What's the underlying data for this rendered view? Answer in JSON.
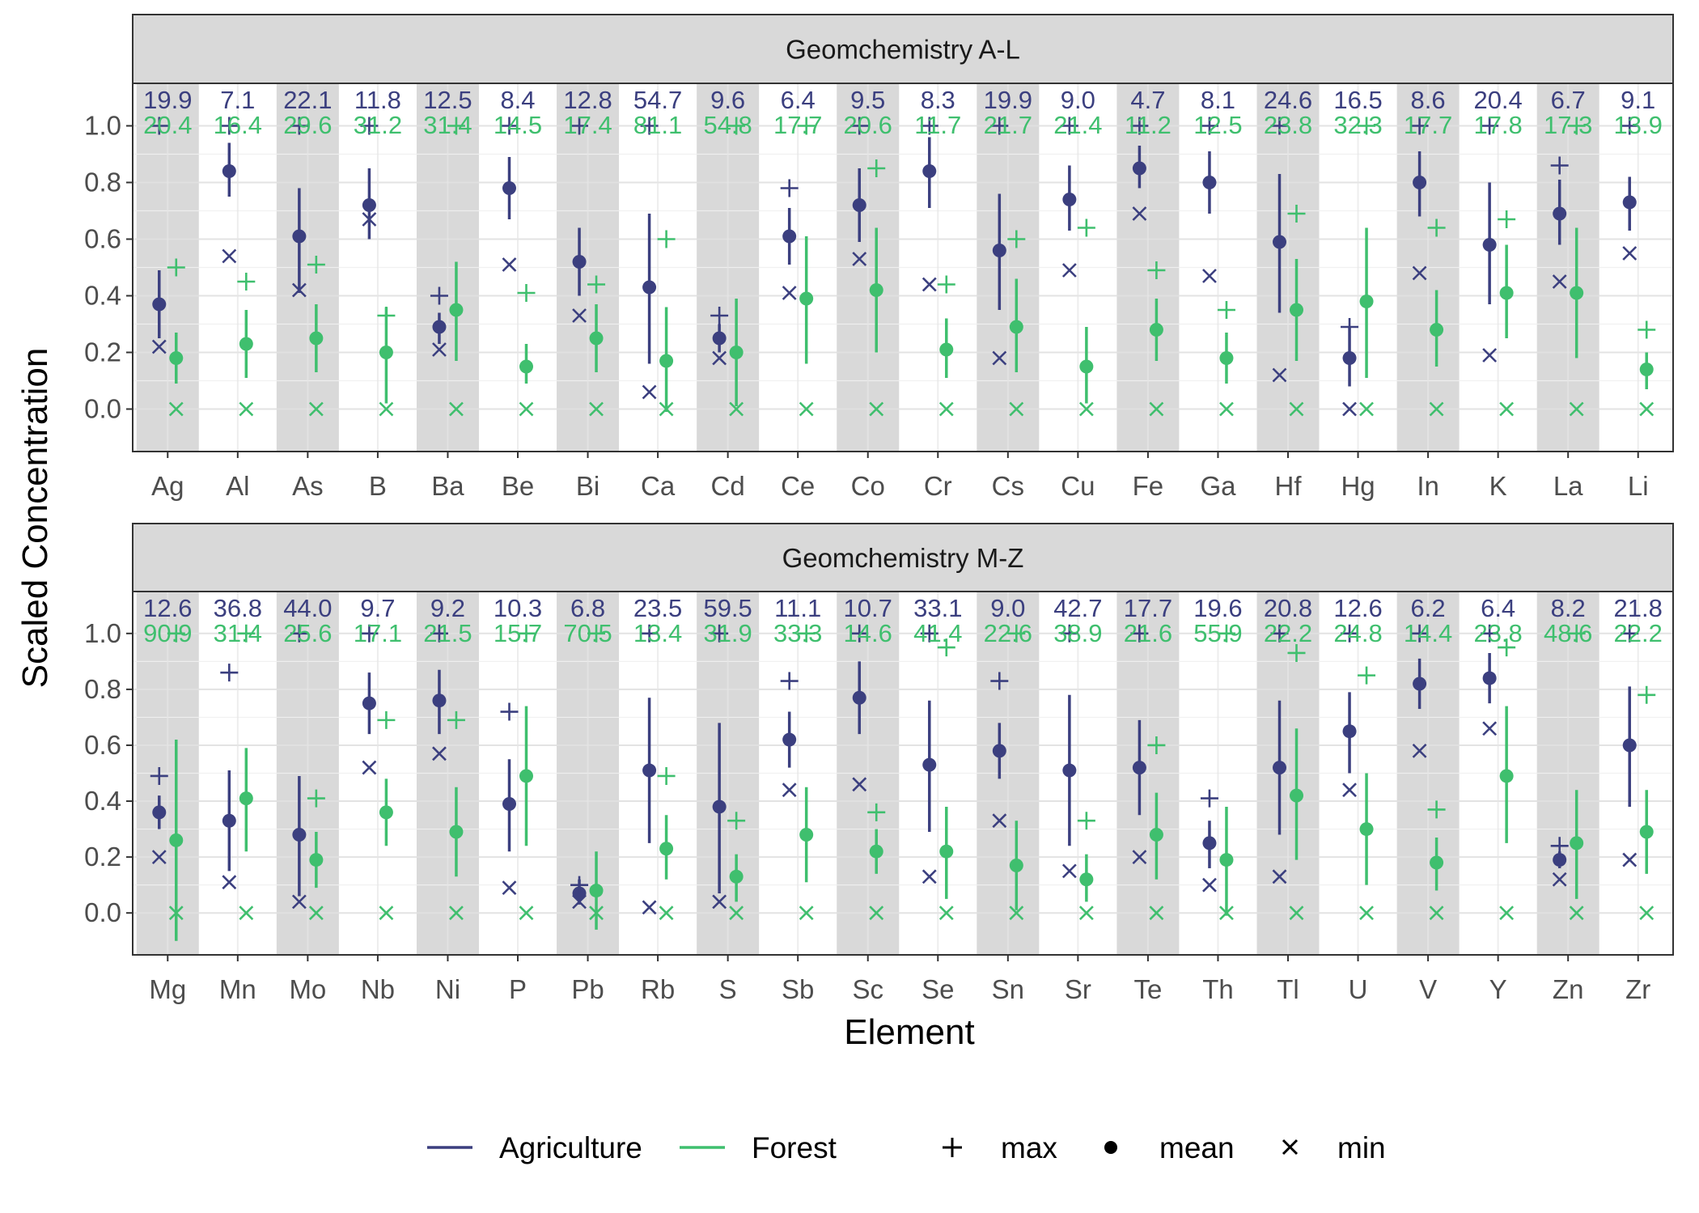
{
  "colors": {
    "agriculture": "#3b3f7f",
    "forest": "#3fbf6e",
    "band": "#d9d9d9",
    "strip": "#d9d9d9",
    "panel_border": "#333333",
    "grid": "#ebebeb"
  },
  "labels": {
    "xlabel": "Element",
    "ylabel": "Scaled Concentration",
    "legend_agriculture": "Agriculture",
    "legend_forest": "Forest",
    "legend_max": "max",
    "legend_mean": "mean",
    "legend_min": "min"
  },
  "chart_data": [
    {
      "type": "errorbar",
      "title": "Geomchemistry A-L",
      "ylim": [
        -0.15,
        1.15
      ],
      "yticks": [
        "0.0",
        "0.2",
        "0.4",
        "0.6",
        "0.8",
        "1.0"
      ],
      "categories": [
        "Ag",
        "Al",
        "As",
        "B",
        "Ba",
        "Be",
        "Bi",
        "Ca",
        "Cd",
        "Ce",
        "Co",
        "Cr",
        "Cs",
        "Cu",
        "Fe",
        "Ga",
        "Hf",
        "Hg",
        "In",
        "K",
        "La",
        "Li"
      ],
      "series": [
        {
          "name": "Agriculture",
          "mean": [
            0.37,
            0.84,
            0.61,
            0.72,
            0.29,
            0.78,
            0.52,
            0.43,
            0.25,
            0.61,
            0.72,
            0.84,
            0.56,
            0.74,
            0.85,
            0.8,
            0.59,
            0.18,
            0.8,
            0.58,
            0.69,
            0.73
          ],
          "lower": [
            0.25,
            0.75,
            0.41,
            0.6,
            0.23,
            0.67,
            0.4,
            0.16,
            0.2,
            0.51,
            0.59,
            0.71,
            0.35,
            0.63,
            0.78,
            0.69,
            0.34,
            0.08,
            0.68,
            0.37,
            0.58,
            0.63
          ],
          "upper": [
            0.49,
            0.94,
            0.78,
            0.85,
            0.34,
            0.89,
            0.64,
            0.69,
            0.3,
            0.71,
            0.85,
            0.96,
            0.76,
            0.86,
            0.93,
            0.91,
            0.83,
            0.29,
            0.91,
            0.8,
            0.81,
            0.82
          ],
          "max": [
            1.0,
            1.0,
            1.0,
            1.0,
            0.4,
            1.0,
            1.0,
            1.0,
            0.33,
            0.78,
            1.0,
            1.0,
            1.0,
            1.0,
            1.0,
            1.0,
            1.0,
            0.29,
            1.0,
            1.0,
            0.86,
            1.0
          ],
          "min": [
            0.22,
            0.54,
            0.42,
            0.67,
            0.21,
            0.51,
            0.33,
            0.06,
            0.18,
            0.41,
            0.53,
            0.44,
            0.18,
            0.49,
            0.69,
            0.47,
            0.12,
            0.0,
            0.48,
            0.19,
            0.45,
            0.55
          ],
          "cv": [
            "19.9",
            "7.1",
            "22.1",
            "11.8",
            "12.5",
            "8.4",
            "12.8",
            "54.7",
            "9.6",
            "6.4",
            "9.5",
            "8.3",
            "19.9",
            "9.0",
            "4.7",
            "8.1",
            "24.6",
            "16.5",
            "8.6",
            "20.4",
            "6.7",
            "9.1"
          ]
        },
        {
          "name": "Forest",
          "mean": [
            0.18,
            0.23,
            0.25,
            0.2,
            0.35,
            0.15,
            0.25,
            0.17,
            0.2,
            0.39,
            0.42,
            0.21,
            0.29,
            0.15,
            0.28,
            0.18,
            0.35,
            0.38,
            0.28,
            0.41,
            0.41,
            0.14
          ],
          "lower": [
            0.09,
            0.11,
            0.13,
            0.02,
            0.17,
            0.09,
            0.13,
            -0.01,
            0.01,
            0.16,
            0.2,
            0.11,
            0.13,
            0.02,
            0.17,
            0.09,
            0.17,
            0.11,
            0.15,
            0.25,
            0.18,
            0.07
          ],
          "upper": [
            0.27,
            0.35,
            0.37,
            0.36,
            0.52,
            0.23,
            0.37,
            0.36,
            0.39,
            0.61,
            0.64,
            0.32,
            0.46,
            0.29,
            0.39,
            0.27,
            0.53,
            0.64,
            0.42,
            0.58,
            0.64,
            0.2
          ],
          "max": [
            0.5,
            0.45,
            0.51,
            0.33,
            1.0,
            0.41,
            0.44,
            0.6,
            1.0,
            1.0,
            0.85,
            0.44,
            0.6,
            0.64,
            0.49,
            0.35,
            0.69,
            1.0,
            0.64,
            0.67,
            1.0,
            0.28
          ],
          "min": [
            0,
            0,
            0,
            0,
            0,
            0,
            0,
            0,
            0,
            0,
            0,
            0,
            0,
            0,
            0,
            0,
            0,
            0,
            0,
            0,
            0,
            0
          ],
          "cv": [
            "20.4",
            "16.4",
            "29.6",
            "31.2",
            "31.4",
            "14.5",
            "17.4",
            "81.1",
            "54.8",
            "17.7",
            "20.6",
            "11.7",
            "21.7",
            "21.4",
            "11.2",
            "12.5",
            "23.8",
            "32.3",
            "17.7",
            "17.8",
            "17.3",
            "13.9"
          ]
        }
      ]
    },
    {
      "type": "errorbar",
      "title": "Geomchemistry M-Z",
      "ylim": [
        -0.15,
        1.15
      ],
      "yticks": [
        "0.0",
        "0.2",
        "0.4",
        "0.6",
        "0.8",
        "1.0"
      ],
      "categories": [
        "Mg",
        "Mn",
        "Mo",
        "Nb",
        "Ni",
        "P",
        "Pb",
        "Rb",
        "S",
        "Sb",
        "Sc",
        "Se",
        "Sn",
        "Sr",
        "Te",
        "Th",
        "Tl",
        "U",
        "V",
        "Y",
        "Zn",
        "Zr"
      ],
      "series": [
        {
          "name": "Agriculture",
          "mean": [
            0.36,
            0.33,
            0.28,
            0.75,
            0.76,
            0.39,
            0.07,
            0.51,
            0.38,
            0.62,
            0.77,
            0.53,
            0.58,
            0.51,
            0.52,
            0.25,
            0.52,
            0.65,
            0.82,
            0.84,
            0.19,
            0.6
          ],
          "lower": [
            0.3,
            0.15,
            0.06,
            0.64,
            0.64,
            0.22,
            0.03,
            0.25,
            0.07,
            0.52,
            0.64,
            0.29,
            0.48,
            0.24,
            0.35,
            0.16,
            0.28,
            0.5,
            0.73,
            0.75,
            0.16,
            0.38
          ],
          "upper": [
            0.42,
            0.51,
            0.49,
            0.86,
            0.87,
            0.55,
            0.12,
            0.77,
            0.68,
            0.72,
            0.9,
            0.76,
            0.68,
            0.78,
            0.69,
            0.33,
            0.76,
            0.79,
            0.91,
            0.93,
            0.22,
            0.81
          ],
          "max": [
            0.49,
            0.86,
            1.0,
            1.0,
            1.0,
            0.72,
            0.1,
            1.0,
            1.0,
            0.83,
            1.0,
            1.0,
            0.83,
            1.0,
            1.0,
            0.41,
            1.0,
            1.0,
            1.0,
            1.0,
            0.24,
            1.0
          ],
          "min": [
            0.2,
            0.11,
            0.04,
            0.52,
            0.57,
            0.09,
            0.04,
            0.02,
            0.04,
            0.44,
            0.46,
            0.13,
            0.33,
            0.15,
            0.2,
            0.1,
            0.13,
            0.44,
            0.58,
            0.66,
            0.12,
            0.19
          ],
          "cv": [
            "12.6",
            "36.8",
            "44.0",
            "9.7",
            "9.2",
            "10.3",
            "6.8",
            "23.5",
            "59.5",
            "11.1",
            "10.7",
            "33.1",
            "9.0",
            "42.7",
            "17.7",
            "19.6",
            "20.8",
            "12.6",
            "6.2",
            "6.4",
            "8.2",
            "21.8"
          ]
        },
        {
          "name": "Forest",
          "mean": [
            0.26,
            0.41,
            0.19,
            0.36,
            0.29,
            0.49,
            0.08,
            0.23,
            0.13,
            0.28,
            0.22,
            0.22,
            0.17,
            0.12,
            0.28,
            0.19,
            0.42,
            0.3,
            0.18,
            0.49,
            0.25,
            0.29
          ],
          "lower": [
            -0.1,
            0.22,
            0.09,
            0.24,
            0.13,
            0.24,
            -0.06,
            0.12,
            0.04,
            0.11,
            0.14,
            0.05,
            0.01,
            0.04,
            0.12,
            -0.01,
            0.19,
            0.1,
            0.08,
            0.25,
            0.05,
            0.14
          ],
          "upper": [
            0.62,
            0.59,
            0.29,
            0.48,
            0.45,
            0.74,
            0.22,
            0.35,
            0.21,
            0.45,
            0.3,
            0.38,
            0.33,
            0.21,
            0.43,
            0.38,
            0.66,
            0.5,
            0.27,
            0.74,
            0.44,
            0.44
          ],
          "max": [
            1.0,
            1.0,
            0.41,
            0.69,
            0.69,
            1.0,
            1.0,
            0.49,
            0.33,
            1.0,
            0.36,
            0.95,
            1.0,
            0.33,
            0.6,
            1.0,
            0.93,
            0.85,
            0.37,
            0.95,
            1.0,
            0.78
          ],
          "min": [
            0,
            0,
            0,
            0,
            0,
            0,
            0,
            0,
            0,
            0,
            0,
            0,
            0,
            0,
            0,
            0,
            0,
            0,
            0,
            0,
            0,
            0
          ],
          "cv": [
            "90.9",
            "31.4",
            "25.6",
            "17.1",
            "21.5",
            "15.7",
            "70.5",
            "13.4",
            "31.9",
            "33.3",
            "14.6",
            "41.4",
            "22.6",
            "38.9",
            "21.6",
            "55.9",
            "22.2",
            "24.8",
            "14.4",
            "23.8",
            "48.6",
            "22.2"
          ]
        }
      ]
    }
  ]
}
